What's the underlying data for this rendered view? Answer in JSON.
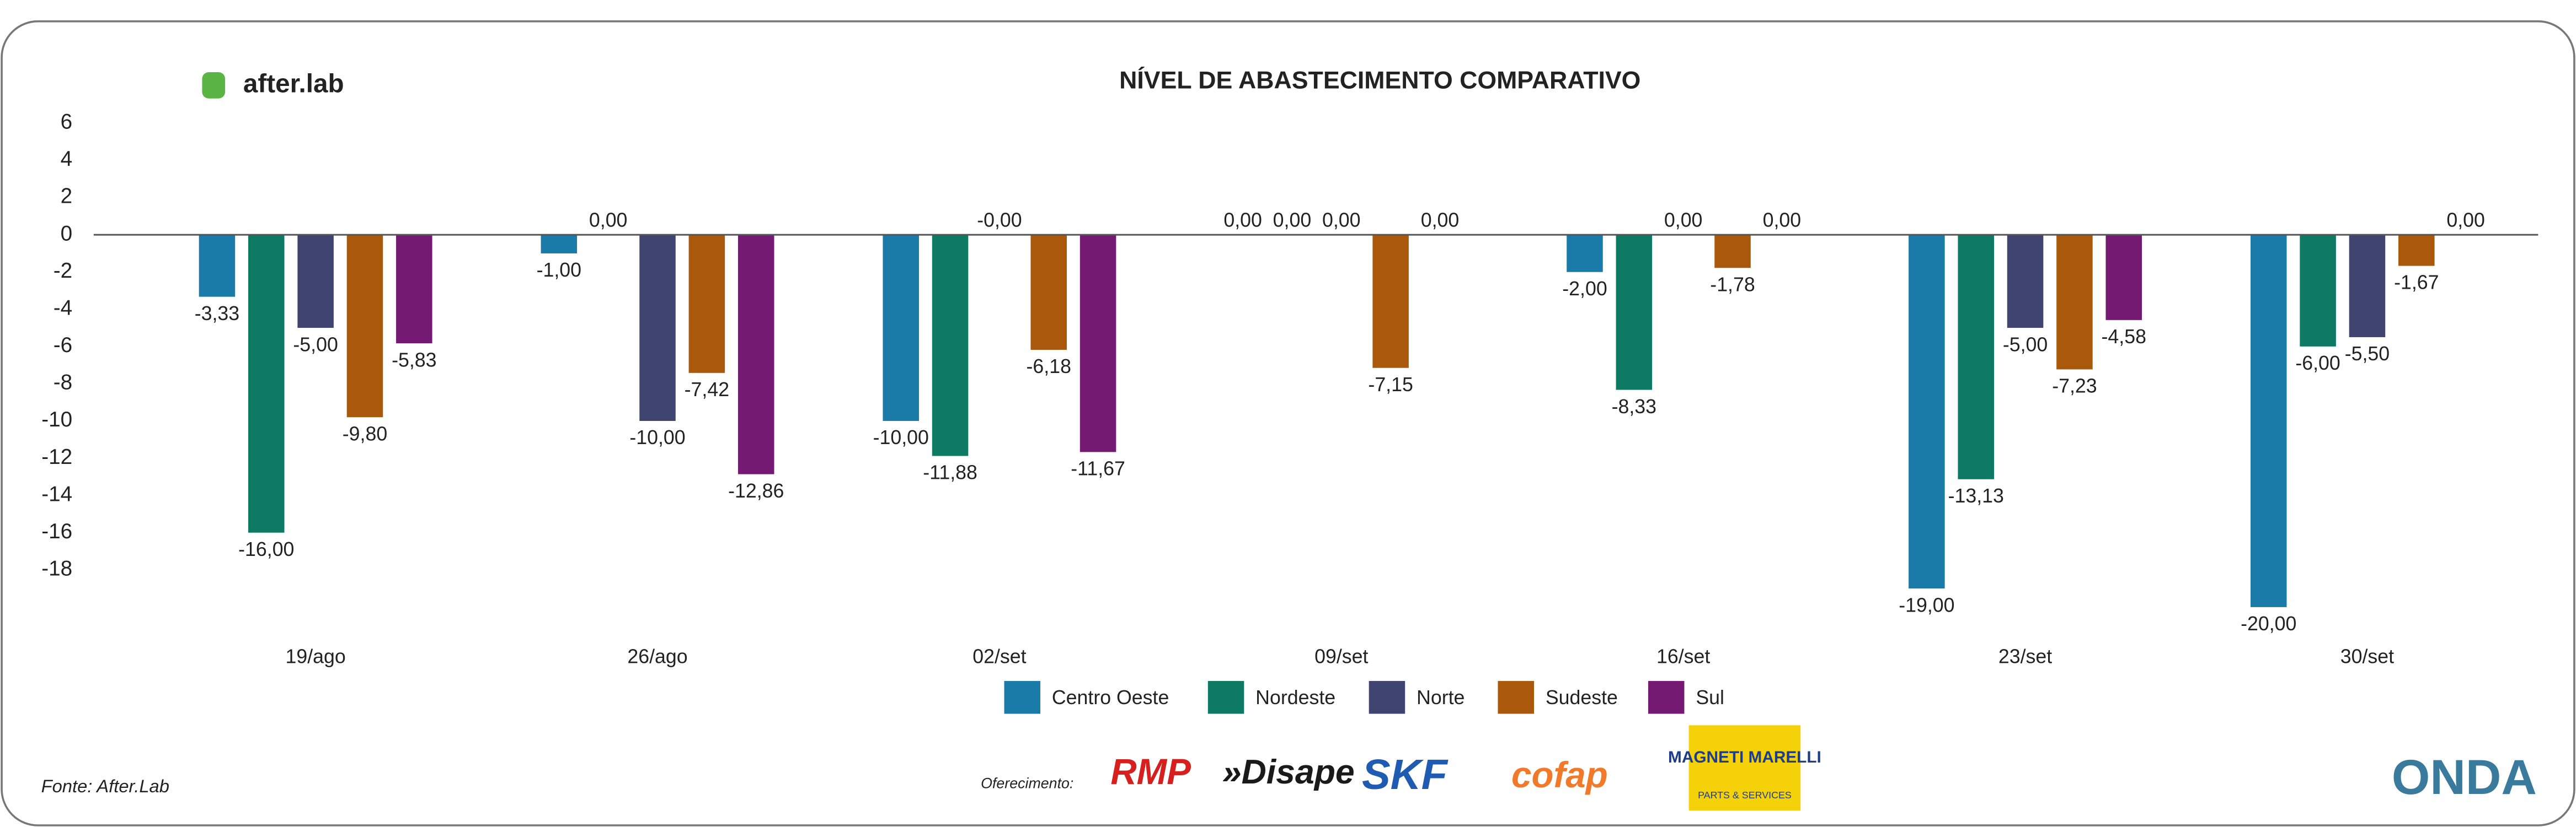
{
  "chart_data": {
    "type": "bar",
    "title": "NÍVEL DE ABASTECIMENTO COMPARATIVO",
    "categories": [
      "19/ago",
      "26/ago",
      "02/set",
      "09/set",
      "16/set",
      "23/set",
      "30/set"
    ],
    "series": [
      {
        "name": "Centro Oeste",
        "color": "#1a7aa8",
        "values": [
          -3.33,
          -1.0,
          -10.0,
          0,
          -2.0,
          -19.0,
          -20.0
        ],
        "value_labels": [
          "-3,33",
          "-1,00",
          "-10,00",
          "0,00",
          "-2,00",
          "-19,00",
          "-20,00"
        ]
      },
      {
        "name": "Nordeste",
        "color": "#0e7a63",
        "values": [
          -16.0,
          0,
          -11.88,
          0,
          -8.33,
          -13.13,
          -6.0
        ],
        "value_labels": [
          "-16,00",
          "0,00",
          "-11,88",
          "0,00",
          "-8,33",
          "-13,13",
          "-6,00"
        ]
      },
      {
        "name": "Norte",
        "color": "#3f4570",
        "values": [
          -5.0,
          -10.0,
          0,
          0,
          0,
          -5.0,
          -5.5
        ],
        "value_labels": [
          "-5,00",
          "-10,00",
          "-0,00",
          "0,00",
          "0,00",
          "-5,00",
          "-5,50"
        ]
      },
      {
        "name": "Sudeste",
        "color": "#a9580c",
        "values": [
          -9.8,
          -7.42,
          -6.18,
          -7.15,
          -1.78,
          -7.23,
          -1.67
        ],
        "value_labels": [
          "-9,80",
          "-7,42",
          "-6,18",
          "-7,15",
          "-1,78",
          "-7,23",
          "-1,67"
        ]
      },
      {
        "name": "Sul",
        "color": "#741a72",
        "values": [
          -5.83,
          -12.86,
          -11.67,
          0,
          0,
          -4.58,
          0
        ],
        "value_labels": [
          "-5,83",
          "-12,86",
          "-11,67",
          "0,00",
          "0,00",
          "-4,58",
          "0,00"
        ]
      }
    ],
    "ylim": [
      -20,
      6
    ],
    "yticks": [
      6,
      4,
      2,
      0,
      -2,
      -4,
      -6,
      -8,
      -10,
      -12,
      -14,
      -16,
      -18
    ],
    "legend": "bottom",
    "grid": false
  },
  "branding": {
    "logo": "after.lab",
    "source": "Fonte: After.Lab",
    "sponsor_label": "Oferecimento:",
    "sponsors": [
      "RMP",
      "»Disape",
      "SKF",
      "cofap"
    ],
    "magneti": "MAGNETI MARELLI",
    "magneti_sub": "PARTS & SERVICES",
    "onda": "ONDA"
  }
}
